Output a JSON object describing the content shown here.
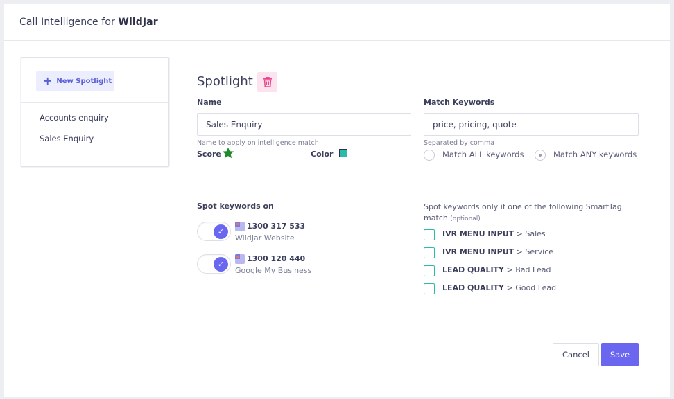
{
  "header": {
    "title_prefix": "Call Intelligence for",
    "title_brand": "WildJar"
  },
  "sidebar": {
    "new_label": "New Spotlight",
    "items": [
      {
        "label": "Accounts enquiry"
      },
      {
        "label": "Sales Enquiry"
      }
    ]
  },
  "spotlight": {
    "title": "Spotlight",
    "name_label": "Name",
    "name_value": "Sales Enquiry",
    "name_hint": "Name to apply on intelligence match",
    "score_label": "Score",
    "color_label": "Color",
    "color_value": "#2bbba6",
    "keywords_label": "Match Keywords",
    "keywords_value": "price, pricing, quote",
    "keywords_hint": "Separated by comma",
    "match_all_label": "Match ALL keywords",
    "match_any_label": "Match ANY keywords",
    "match_selected": "any"
  },
  "spot_on": {
    "label": "Spot keywords on",
    "numbers": [
      {
        "number": "1300 317 533",
        "source": "WildJar Website",
        "enabled": true
      },
      {
        "number": "1300 120 440",
        "source": "Google My Business",
        "enabled": true
      }
    ]
  },
  "smarttag": {
    "label": "Spot keywords only if one of the following SmartTag match",
    "optional": "(optional)",
    "items": [
      {
        "tag": "IVR MENU INPUT",
        "value": "> Sales"
      },
      {
        "tag": "IVR MENU INPUT",
        "value": "> Service"
      },
      {
        "tag": "LEAD QUALITY",
        "value": "> Bad Lead"
      },
      {
        "tag": "LEAD QUALITY",
        "value": "> Good Lead"
      }
    ]
  },
  "actions": {
    "cancel_label": "Cancel",
    "save_label": "Save"
  },
  "icons": {
    "plus": "plus-icon",
    "trash": "trash-icon",
    "star": "star-icon",
    "check": "check-icon",
    "flag": "au-flag-icon"
  }
}
